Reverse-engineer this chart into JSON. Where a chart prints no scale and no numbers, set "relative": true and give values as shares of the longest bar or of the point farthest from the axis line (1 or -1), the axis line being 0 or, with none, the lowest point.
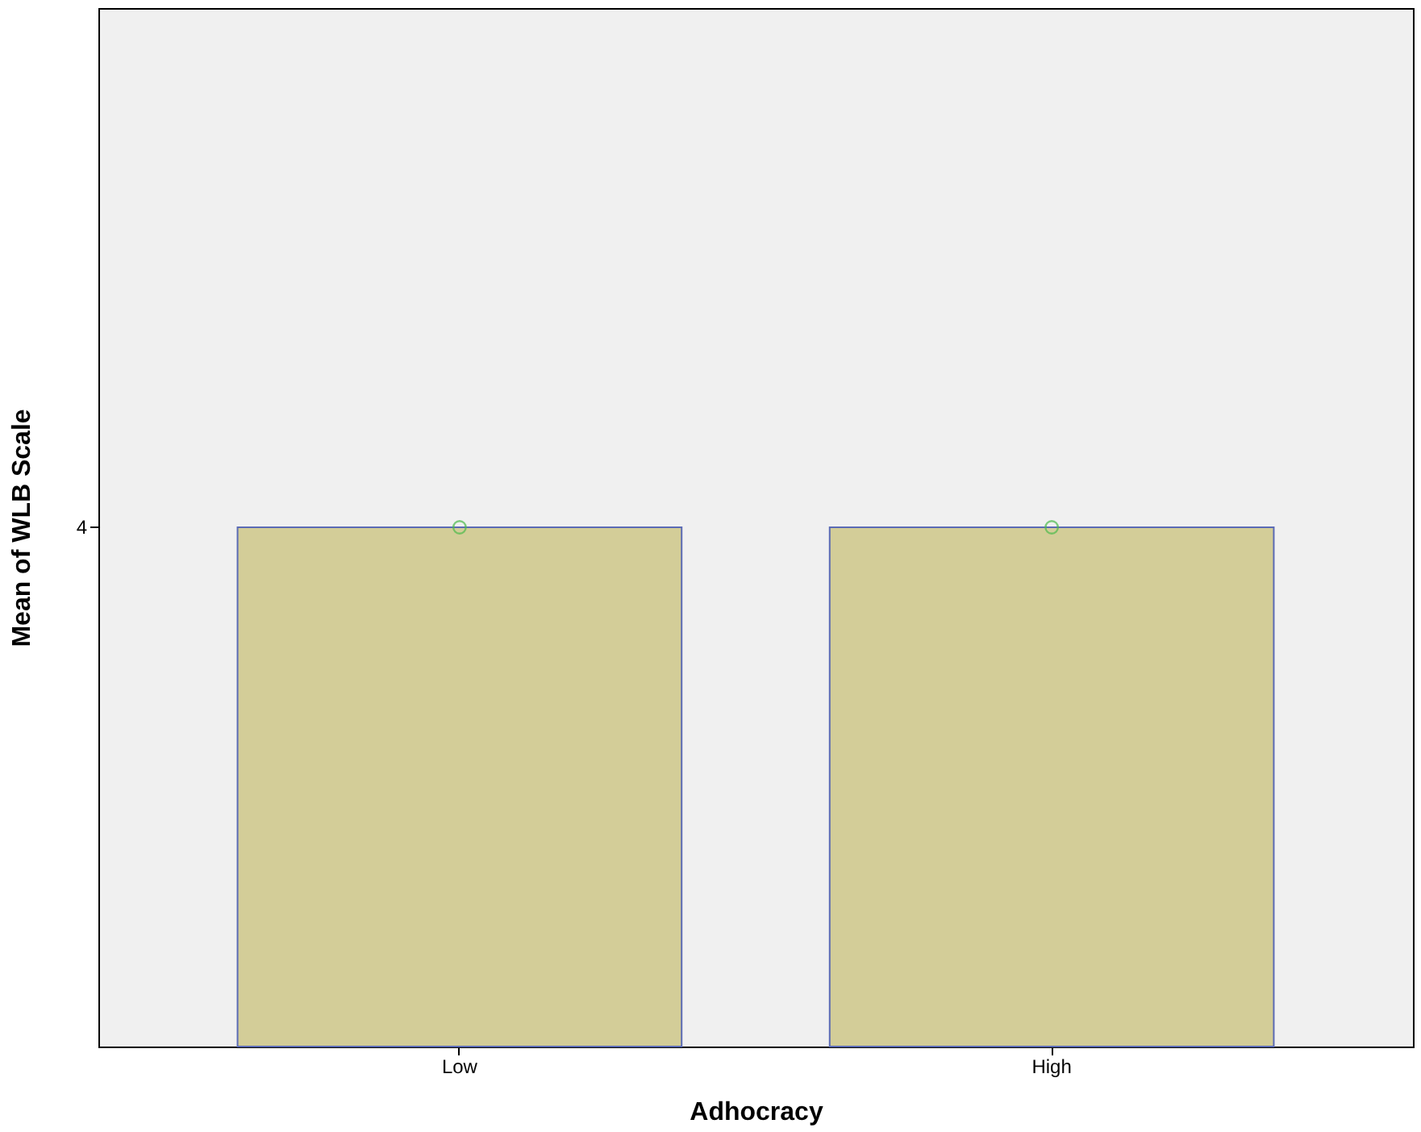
{
  "chart_data": {
    "type": "bar",
    "relative": true,
    "xlabel": "Adhocracy",
    "ylabel": "Mean of WLB Scale",
    "categories": [
      "Low",
      "High"
    ],
    "series": [
      {
        "color": "#d3cd98",
        "values": [
          1,
          1
        ]
      },
      {
        "type": "scatter",
        "color": "#4cbb4c",
        "x": [
          "Low",
          "High"
        ],
        "values": [
          1,
          1
        ],
        "marker": "circle"
      }
    ],
    "annotations": [
      "4"
    ]
  }
}
